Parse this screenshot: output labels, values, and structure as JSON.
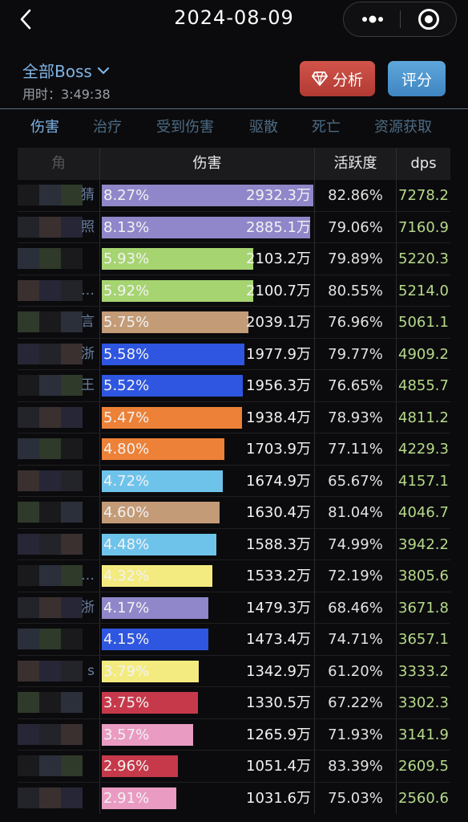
{
  "header": {
    "date": "2024-08-09"
  },
  "boss": {
    "label": "全部Boss",
    "elapsed": "用时：3:49:38"
  },
  "buttons": {
    "analyze": "分析",
    "rate": "评分"
  },
  "tabs": [
    "伤害",
    "治疗",
    "受到伤害",
    "驱散",
    "死亡",
    "资源获取"
  ],
  "table": {
    "headers": [
      "角",
      "伤害",
      "活跃度",
      "dps"
    ],
    "rows": [
      {
        "frag": "猜",
        "pct": "8.27%",
        "amount": "2932.3万",
        "activity": "82.86%",
        "dps": "7278.2",
        "color": "#8f87c9",
        "ratio": 1.0
      },
      {
        "frag": "照",
        "pct": "8.13%",
        "amount": "2885.1万",
        "activity": "79.06%",
        "dps": "7160.9",
        "color": "#8f87c9",
        "ratio": 0.983
      },
      {
        "frag": "",
        "pct": "5.93%",
        "amount": "2103.2万",
        "activity": "79.89%",
        "dps": "5220.3",
        "color": "#a6d471",
        "ratio": 0.717
      },
      {
        "frag": "…",
        "pct": "5.92%",
        "amount": "2100.7万",
        "activity": "80.55%",
        "dps": "5214.0",
        "color": "#a6d471",
        "ratio": 0.716
      },
      {
        "frag": "言",
        "pct": "5.75%",
        "amount": "2039.1万",
        "activity": "76.96%",
        "dps": "5061.1",
        "color": "#c39b77",
        "ratio": 0.695
      },
      {
        "frag": "浙",
        "pct": "5.58%",
        "amount": "1977.9万",
        "activity": "79.77%",
        "dps": "4909.2",
        "color": "#2f56e0",
        "ratio": 0.674
      },
      {
        "frag": "王",
        "pct": "5.52%",
        "amount": "1956.3万",
        "activity": "76.65%",
        "dps": "4855.7",
        "color": "#2f56e0",
        "ratio": 0.667
      },
      {
        "frag": "",
        "pct": "5.47%",
        "amount": "1938.4万",
        "activity": "78.93%",
        "dps": "4811.2",
        "color": "#ec8137",
        "ratio": 0.661
      },
      {
        "frag": "",
        "pct": "4.80%",
        "amount": "1703.9万",
        "activity": "77.11%",
        "dps": "4229.3",
        "color": "#ec8137",
        "ratio": 0.581
      },
      {
        "frag": "",
        "pct": "4.72%",
        "amount": "1674.9万",
        "activity": "65.67%",
        "dps": "4157.1",
        "color": "#6ec3eb",
        "ratio": 0.571
      },
      {
        "frag": "",
        "pct": "4.60%",
        "amount": "1630.4万",
        "activity": "81.04%",
        "dps": "4046.7",
        "color": "#c39b77",
        "ratio": 0.556
      },
      {
        "frag": "",
        "pct": "4.48%",
        "amount": "1588.3万",
        "activity": "74.99%",
        "dps": "3942.2",
        "color": "#6ec3eb",
        "ratio": 0.541
      },
      {
        "frag": "…",
        "pct": "4.32%",
        "amount": "1533.2万",
        "activity": "72.19%",
        "dps": "3805.6",
        "color": "#f3eb7f",
        "ratio": 0.523
      },
      {
        "frag": "浙",
        "pct": "4.17%",
        "amount": "1479.3万",
        "activity": "68.46%",
        "dps": "3671.8",
        "color": "#8f87c9",
        "ratio": 0.504
      },
      {
        "frag": "",
        "pct": "4.15%",
        "amount": "1473.4万",
        "activity": "74.71%",
        "dps": "3657.1",
        "color": "#2f56e0",
        "ratio": 0.502
      },
      {
        "frag": "s",
        "pct": "3.79%",
        "amount": "1342.9万",
        "activity": "61.20%",
        "dps": "3333.2",
        "color": "#f3eb7f",
        "ratio": 0.458
      },
      {
        "frag": "",
        "pct": "3.75%",
        "amount": "1330.5万",
        "activity": "67.22%",
        "dps": "3302.3",
        "color": "#c6394a",
        "ratio": 0.454
      },
      {
        "frag": "",
        "pct": "3.57%",
        "amount": "1265.9万",
        "activity": "71.93%",
        "dps": "3141.9",
        "color": "#e99bc2",
        "ratio": 0.432
      },
      {
        "frag": "",
        "pct": "2.96%",
        "amount": "1051.4万",
        "activity": "83.39%",
        "dps": "2609.5",
        "color": "#c6394a",
        "ratio": 0.359
      },
      {
        "frag": "",
        "pct": "2.91%",
        "amount": "1031.6万",
        "activity": "75.03%",
        "dps": "2560.6",
        "color": "#e99bc2",
        "ratio": 0.352
      }
    ]
  }
}
